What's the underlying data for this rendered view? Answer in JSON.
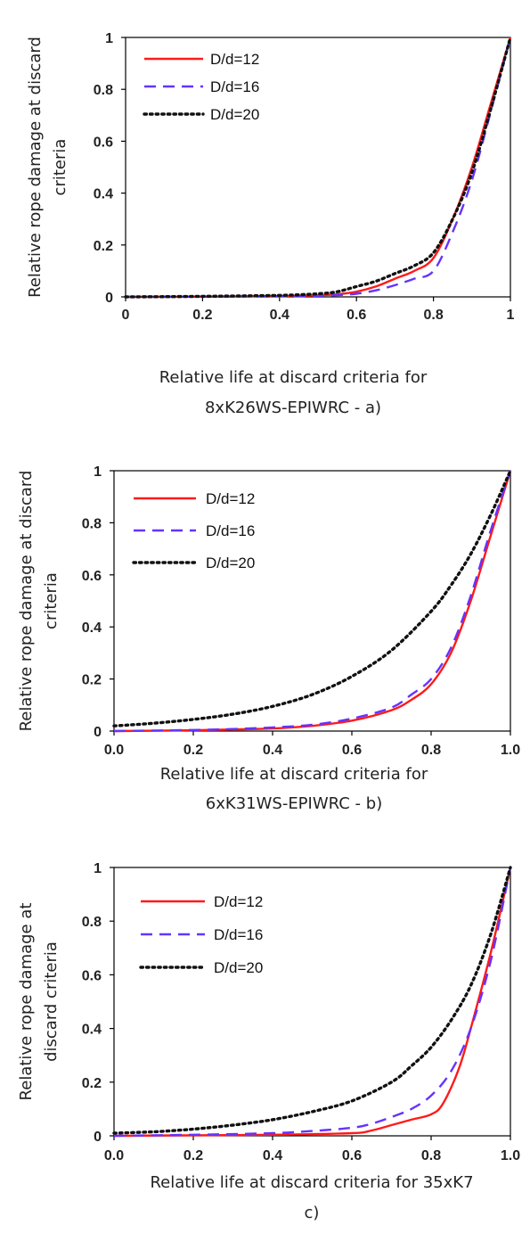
{
  "chart_data": [
    {
      "type": "line",
      "panel": "a",
      "xlabel_lines": [
        "Relative life at discard criteria for",
        "8xK26WS-EPIWRC - a)"
      ],
      "ylabel_lines": [
        "Relative rope  damage at discard",
        "criteria"
      ],
      "xlim": [
        0,
        1
      ],
      "ylim": [
        0,
        1
      ],
      "xticks": [
        "0",
        "0.2",
        "0.4",
        "0.6",
        "0.8",
        "1"
      ],
      "yticks": [
        "0",
        "0.2",
        "0.4",
        "0.6",
        "0.8",
        "1"
      ],
      "legend_position": "top-left",
      "grid": false,
      "series": [
        {
          "name": "D/d=12",
          "color": "#ff1a1a",
          "dash": "solid",
          "x": [
            0,
            0.2,
            0.4,
            0.5,
            0.55,
            0.6,
            0.65,
            0.7,
            0.75,
            0.8,
            0.85,
            0.9,
            0.95,
            1.0
          ],
          "y": [
            0,
            0.001,
            0.003,
            0.006,
            0.01,
            0.02,
            0.04,
            0.07,
            0.1,
            0.15,
            0.3,
            0.5,
            0.75,
            1.0
          ]
        },
        {
          "name": "D/d=16",
          "color": "#6633ff",
          "dash": "dashed",
          "x": [
            0,
            0.2,
            0.4,
            0.5,
            0.55,
            0.6,
            0.65,
            0.7,
            0.75,
            0.8,
            0.85,
            0.9,
            0.95,
            1.0
          ],
          "y": [
            0,
            0.001,
            0.002,
            0.004,
            0.007,
            0.012,
            0.025,
            0.045,
            0.07,
            0.1,
            0.25,
            0.45,
            0.72,
            1.0
          ]
        },
        {
          "name": "D/d=20",
          "color": "#111111",
          "dash": "dotted",
          "x": [
            0,
            0.2,
            0.4,
            0.5,
            0.55,
            0.6,
            0.65,
            0.7,
            0.75,
            0.8,
            0.85,
            0.9,
            0.95,
            1.0
          ],
          "y": [
            0,
            0.002,
            0.006,
            0.012,
            0.02,
            0.04,
            0.06,
            0.09,
            0.12,
            0.17,
            0.3,
            0.48,
            0.73,
            1.0
          ]
        }
      ]
    },
    {
      "type": "line",
      "panel": "b",
      "xlabel_lines": [
        "Relative life at discard criteria for",
        "6xK31WS-EPIWRC - b)"
      ],
      "ylabel_lines": [
        "Relative rope damage at discard",
        "criteria"
      ],
      "xlim": [
        0,
        1
      ],
      "ylim": [
        0,
        1
      ],
      "xticks": [
        "0.0",
        "0.2",
        "0.4",
        "0.6",
        "0.8",
        "1.0"
      ],
      "yticks": [
        "0",
        "0.2",
        "0.4",
        "0.6",
        "0.8",
        "1"
      ],
      "legend_position": "top-left",
      "grid": false,
      "series": [
        {
          "name": "D/d=12",
          "color": "#ff1a1a",
          "dash": "solid",
          "x": [
            0,
            0.2,
            0.3,
            0.4,
            0.5,
            0.6,
            0.7,
            0.75,
            0.8,
            0.85,
            0.9,
            0.95,
            1.0
          ],
          "y": [
            0,
            0.003,
            0.006,
            0.01,
            0.02,
            0.04,
            0.08,
            0.12,
            0.18,
            0.3,
            0.5,
            0.75,
            1.0
          ]
        },
        {
          "name": "D/d=16",
          "color": "#6633ff",
          "dash": "dashed",
          "x": [
            0,
            0.2,
            0.3,
            0.4,
            0.5,
            0.6,
            0.7,
            0.75,
            0.8,
            0.85,
            0.9,
            0.95,
            1.0
          ],
          "y": [
            0,
            0.004,
            0.008,
            0.014,
            0.024,
            0.048,
            0.09,
            0.14,
            0.2,
            0.32,
            0.52,
            0.77,
            1.0
          ]
        },
        {
          "name": "D/d=20",
          "color": "#111111",
          "dash": "dotted",
          "x": [
            0,
            0.1,
            0.2,
            0.3,
            0.4,
            0.5,
            0.6,
            0.7,
            0.8,
            0.85,
            0.9,
            0.95,
            1.0
          ],
          "y": [
            0.02,
            0.03,
            0.045,
            0.065,
            0.095,
            0.14,
            0.21,
            0.31,
            0.46,
            0.56,
            0.68,
            0.83,
            1.0
          ]
        }
      ]
    },
    {
      "type": "line",
      "panel": "c",
      "xlabel_lines": [
        "Relative life at discard criteria for 35xK7",
        "c)"
      ],
      "ylabel_lines": [
        "Relative  rope damage at",
        "discard criteria"
      ],
      "xlim": [
        0,
        1
      ],
      "ylim": [
        0,
        1
      ],
      "xticks": [
        "0.0",
        "0.2",
        "0.4",
        "0.6",
        "0.8",
        "1.0"
      ],
      "yticks": [
        "0",
        "0.2",
        "0.4",
        "0.6",
        "0.8",
        "1"
      ],
      "legend_position": "top-left",
      "grid": false,
      "series": [
        {
          "name": "D/d=12",
          "color": "#ff1a1a",
          "dash": "solid",
          "x": [
            0,
            0.2,
            0.4,
            0.6,
            0.65,
            0.7,
            0.75,
            0.8,
            0.83,
            0.87,
            0.9,
            0.95,
            1.0
          ],
          "y": [
            0,
            0.002,
            0.004,
            0.01,
            0.02,
            0.04,
            0.06,
            0.08,
            0.12,
            0.25,
            0.4,
            0.68,
            1.0
          ]
        },
        {
          "name": "D/d=16",
          "color": "#6633ff",
          "dash": "dashed",
          "x": [
            0,
            0.2,
            0.4,
            0.5,
            0.6,
            0.65,
            0.7,
            0.75,
            0.8,
            0.85,
            0.9,
            0.95,
            1.0
          ],
          "y": [
            0,
            0.004,
            0.01,
            0.018,
            0.03,
            0.045,
            0.07,
            0.1,
            0.15,
            0.24,
            0.4,
            0.65,
            1.0
          ]
        },
        {
          "name": "D/d=20",
          "color": "#111111",
          "dash": "dotted",
          "x": [
            0,
            0.1,
            0.2,
            0.3,
            0.4,
            0.5,
            0.6,
            0.7,
            0.75,
            0.8,
            0.85,
            0.9,
            0.95,
            1.0
          ],
          "y": [
            0.01,
            0.015,
            0.025,
            0.04,
            0.06,
            0.09,
            0.13,
            0.2,
            0.26,
            0.33,
            0.43,
            0.56,
            0.75,
            1.0
          ]
        }
      ]
    }
  ]
}
